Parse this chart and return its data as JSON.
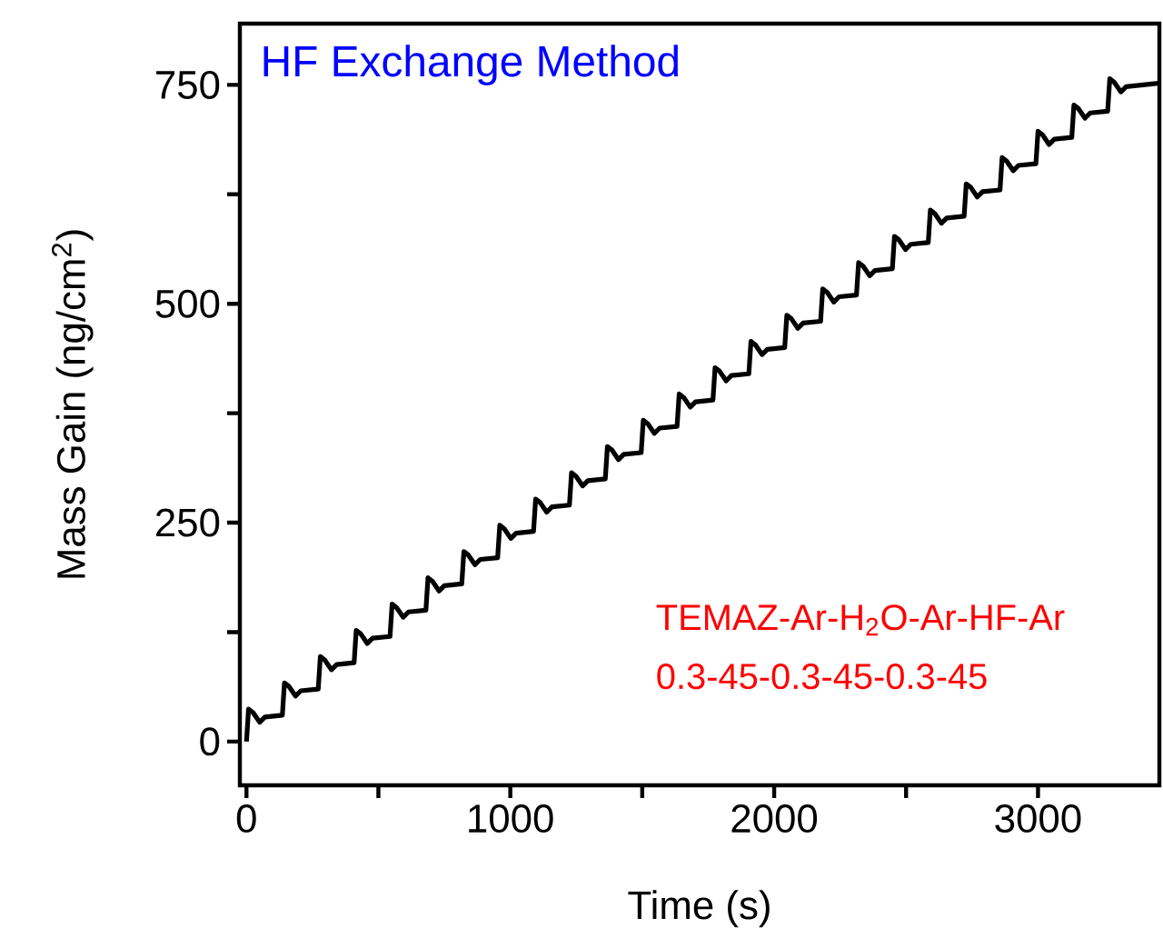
{
  "chart_data": {
    "type": "line",
    "xlabel": "Time (s)",
    "ylabel": "Mass Gain (ng/cm$^{2}$)",
    "xlim": [
      -25,
      3460
    ],
    "ylim": [
      -50,
      820
    ],
    "xticks": [
      0,
      {
        "value": 500,
        "label": null
      },
      1000,
      {
        "value": 1500,
        "label": null
      },
      2000,
      {
        "value": 2500,
        "label": null
      },
      3000
    ],
    "yticks": [
      0,
      {
        "value": 125,
        "label": null
      },
      250,
      {
        "value": 375,
        "label": null
      },
      500,
      {
        "value": 625,
        "label": null
      },
      750
    ],
    "grid": false,
    "marker": "none",
    "line_style": "solid",
    "annotations": [
      "HF Exchange Method",
      "TEMAZ-Ar-H$_{2}$O-Ar-HF-Ar",
      "0.3-45-0.3-45-0.3-45"
    ],
    "series": [
      {
        "color": "#000000",
        "x": [
          0,
          8,
          25,
          50,
          70,
          136,
          144,
          161,
          186,
          206,
          272,
          280,
          297,
          322,
          342,
          408,
          416,
          433,
          458,
          478,
          544,
          552,
          569,
          594,
          614,
          680,
          688,
          705,
          730,
          750,
          816,
          824,
          841,
          866,
          886,
          952,
          960,
          977,
          1002,
          1022,
          1088,
          1096,
          1113,
          1138,
          1158,
          1224,
          1232,
          1249,
          1274,
          1294,
          1360,
          1368,
          1385,
          1410,
          1430,
          1496,
          1504,
          1521,
          1546,
          1566,
          1632,
          1640,
          1657,
          1682,
          1702,
          1768,
          1776,
          1793,
          1818,
          1838,
          1904,
          1912,
          1929,
          1954,
          1974,
          2040,
          2048,
          2065,
          2090,
          2110,
          2176,
          2184,
          2201,
          2226,
          2246,
          2312,
          2320,
          2337,
          2362,
          2382,
          2448,
          2456,
          2473,
          2498,
          2518,
          2584,
          2592,
          2609,
          2634,
          2654,
          2720,
          2728,
          2745,
          2770,
          2790,
          2856,
          2864,
          2881,
          2906,
          2926,
          2992,
          3000,
          3017,
          3042,
          3062,
          3128,
          3136,
          3153,
          3178,
          3198,
          3264,
          3272,
          3289,
          3314,
          3334,
          3460
        ],
        "values": [
          0,
          37,
          33,
          22,
          28,
          30,
          67,
          63,
          52,
          58,
          60,
          97,
          93,
          82,
          88,
          90,
          127,
          123,
          112,
          118,
          120,
          157,
          153,
          142,
          148,
          150,
          187,
          183,
          172,
          178,
          180,
          217,
          213,
          202,
          208,
          210,
          247,
          243,
          232,
          238,
          240,
          277,
          273,
          262,
          268,
          270,
          307,
          303,
          292,
          298,
          300,
          337,
          333,
          322,
          328,
          330,
          367,
          363,
          352,
          358,
          360,
          397,
          393,
          382,
          388,
          390,
          427,
          423,
          412,
          418,
          420,
          457,
          453,
          442,
          448,
          450,
          487,
          483,
          472,
          478,
          480,
          517,
          513,
          502,
          508,
          510,
          547,
          543,
          532,
          538,
          540,
          577,
          573,
          562,
          568,
          570,
          607,
          603,
          592,
          598,
          600,
          637,
          633,
          622,
          628,
          630,
          667,
          663,
          652,
          658,
          660,
          697,
          693,
          682,
          688,
          690,
          727,
          723,
          712,
          718,
          720,
          757,
          753,
          742,
          748,
          752
        ]
      }
    ]
  }
}
